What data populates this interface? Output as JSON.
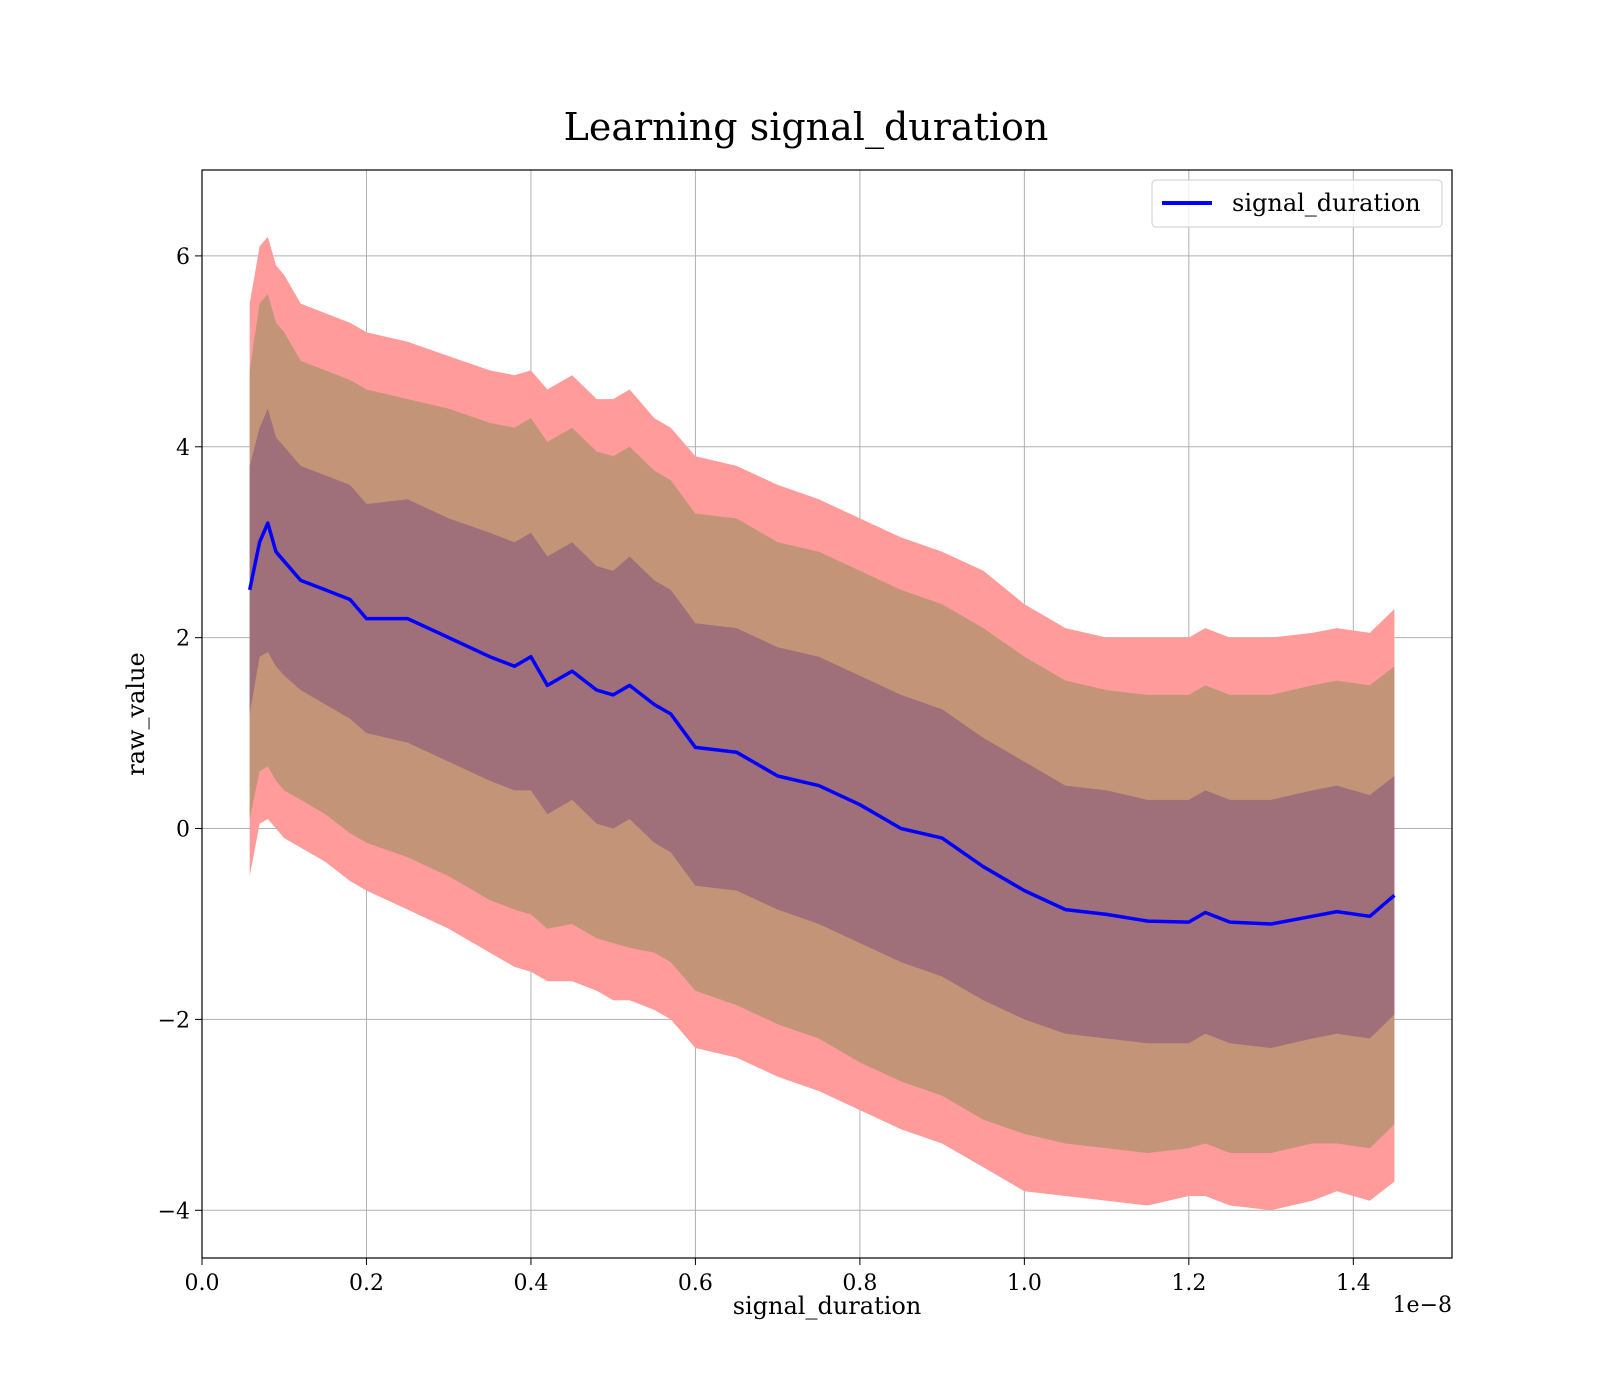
{
  "chart_data": {
    "type": "line",
    "title": "Learning signal_duration",
    "xlabel": "signal_duration",
    "ylabel": "raw_value",
    "x_offset_label": "1e−8",
    "xlim": [
      0.0,
      1.52
    ],
    "ylim": [
      -4.5,
      6.9
    ],
    "x_ticks": [
      0.0,
      0.2,
      0.4,
      0.6,
      0.8,
      1.0,
      1.2,
      1.4
    ],
    "x_tick_labels": [
      "0.0",
      "0.2",
      "0.4",
      "0.6",
      "0.8",
      "1.0",
      "1.2",
      "1.4"
    ],
    "y_ticks": [
      -4,
      -2,
      0,
      2,
      4,
      6
    ],
    "y_tick_labels": [
      "−4",
      "−2",
      "0",
      "2",
      "4",
      "6"
    ],
    "grid": true,
    "legend": {
      "position": "top-right",
      "entries": [
        "signal_duration"
      ]
    },
    "colors": {
      "line": "#0000ff",
      "band_outer": "#ff9b9b",
      "band_middle": "#c49478",
      "band_inner": "#a0707a"
    },
    "series": [
      {
        "name": "signal_duration",
        "x": [
          0.058,
          0.07,
          0.08,
          0.09,
          0.1,
          0.12,
          0.15,
          0.18,
          0.2,
          0.25,
          0.3,
          0.35,
          0.38,
          0.4,
          0.42,
          0.45,
          0.48,
          0.5,
          0.52,
          0.55,
          0.57,
          0.6,
          0.65,
          0.7,
          0.75,
          0.8,
          0.85,
          0.9,
          0.95,
          1.0,
          1.05,
          1.1,
          1.15,
          1.2,
          1.22,
          1.25,
          1.3,
          1.35,
          1.38,
          1.42,
          1.45
        ],
        "y": [
          2.5,
          3.0,
          3.2,
          2.9,
          2.8,
          2.6,
          2.5,
          2.4,
          2.2,
          2.2,
          2.0,
          1.8,
          1.7,
          1.8,
          1.5,
          1.65,
          1.45,
          1.4,
          1.5,
          1.3,
          1.2,
          0.85,
          0.8,
          0.55,
          0.45,
          0.25,
          0.0,
          -0.1,
          -0.4,
          -0.65,
          -0.85,
          -0.9,
          -0.97,
          -0.98,
          -0.88,
          -0.98,
          -1.0,
          -0.92,
          -0.87,
          -0.92,
          -0.7
        ]
      }
    ],
    "bands": [
      {
        "name": "outer",
        "lower": [
          -0.5,
          0.05,
          0.1,
          0.0,
          -0.1,
          -0.2,
          -0.35,
          -0.55,
          -0.65,
          -0.85,
          -1.05,
          -1.3,
          -1.45,
          -1.5,
          -1.6,
          -1.6,
          -1.7,
          -1.8,
          -1.8,
          -1.9,
          -2.0,
          -2.3,
          -2.4,
          -2.6,
          -2.75,
          -2.95,
          -3.15,
          -3.3,
          -3.55,
          -3.8,
          -3.85,
          -3.9,
          -3.95,
          -3.85,
          -3.85,
          -3.95,
          -4.0,
          -3.9,
          -3.8,
          -3.9,
          -3.7
        ],
        "upper": [
          5.5,
          6.1,
          6.2,
          5.9,
          5.8,
          5.5,
          5.4,
          5.3,
          5.2,
          5.1,
          4.95,
          4.8,
          4.75,
          4.8,
          4.6,
          4.75,
          4.5,
          4.5,
          4.6,
          4.3,
          4.2,
          3.9,
          3.8,
          3.6,
          3.45,
          3.25,
          3.05,
          2.9,
          2.7,
          2.35,
          2.1,
          2.0,
          2.0,
          2.0,
          2.1,
          2.0,
          2.0,
          2.05,
          2.1,
          2.05,
          2.3
        ]
      },
      {
        "name": "middle",
        "lower": [
          0.1,
          0.6,
          0.65,
          0.5,
          0.4,
          0.3,
          0.15,
          -0.05,
          -0.15,
          -0.3,
          -0.5,
          -0.75,
          -0.85,
          -0.9,
          -1.05,
          -1.0,
          -1.15,
          -1.2,
          -1.25,
          -1.3,
          -1.4,
          -1.7,
          -1.85,
          -2.05,
          -2.2,
          -2.45,
          -2.65,
          -2.8,
          -3.05,
          -3.2,
          -3.3,
          -3.35,
          -3.4,
          -3.35,
          -3.3,
          -3.4,
          -3.4,
          -3.3,
          -3.3,
          -3.35,
          -3.1
        ],
        "upper": [
          4.8,
          5.5,
          5.6,
          5.3,
          5.2,
          4.9,
          4.8,
          4.7,
          4.6,
          4.5,
          4.4,
          4.25,
          4.2,
          4.3,
          4.05,
          4.2,
          3.95,
          3.9,
          4.0,
          3.75,
          3.65,
          3.3,
          3.25,
          3.0,
          2.9,
          2.7,
          2.5,
          2.35,
          2.1,
          1.8,
          1.55,
          1.45,
          1.4,
          1.4,
          1.5,
          1.4,
          1.4,
          1.5,
          1.55,
          1.5,
          1.7
        ]
      },
      {
        "name": "inner",
        "lower": [
          1.2,
          1.8,
          1.85,
          1.7,
          1.6,
          1.45,
          1.3,
          1.15,
          1.0,
          0.9,
          0.7,
          0.5,
          0.4,
          0.4,
          0.15,
          0.3,
          0.05,
          0.0,
          0.1,
          -0.15,
          -0.25,
          -0.6,
          -0.65,
          -0.85,
          -1.0,
          -1.2,
          -1.4,
          -1.55,
          -1.8,
          -2.0,
          -2.15,
          -2.2,
          -2.25,
          -2.25,
          -2.15,
          -2.25,
          -2.3,
          -2.2,
          -2.15,
          -2.2,
          -1.95
        ],
        "upper": [
          3.8,
          4.2,
          4.4,
          4.1,
          4.0,
          3.8,
          3.7,
          3.6,
          3.4,
          3.45,
          3.25,
          3.1,
          3.0,
          3.1,
          2.85,
          3.0,
          2.75,
          2.7,
          2.85,
          2.6,
          2.5,
          2.15,
          2.1,
          1.9,
          1.8,
          1.6,
          1.4,
          1.25,
          0.95,
          0.7,
          0.45,
          0.4,
          0.3,
          0.3,
          0.4,
          0.3,
          0.3,
          0.4,
          0.45,
          0.35,
          0.55
        ]
      }
    ]
  }
}
